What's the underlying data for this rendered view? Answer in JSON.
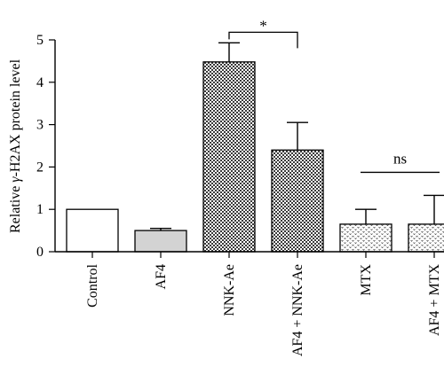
{
  "chart_data": {
    "type": "bar",
    "ylabel_prefix": "Relative ",
    "ylabel_greek": "γ",
    "ylabel_suffix": "-H2AX protein level",
    "xlabel": "",
    "ylim": [
      0,
      5
    ],
    "yticks": [
      "0",
      "1",
      "2",
      "3",
      "4",
      "5"
    ],
    "categories": [
      "Control",
      "AF4",
      "NNK-Ae",
      "AF4 + NNK-Ae",
      "MTX",
      "AF4 + MTX"
    ],
    "values": [
      1.0,
      0.5,
      4.48,
      2.4,
      0.65,
      0.65
    ],
    "errors": [
      0.0,
      0.05,
      0.45,
      0.65,
      0.35,
      0.68
    ],
    "fills": [
      "white",
      "lightgray",
      "checker",
      "checker",
      "dotted",
      "dotted"
    ],
    "annotations": [
      {
        "text": "*",
        "from": 2,
        "to": 3
      },
      {
        "text": "ns",
        "from": 4,
        "to": 5
      }
    ]
  }
}
